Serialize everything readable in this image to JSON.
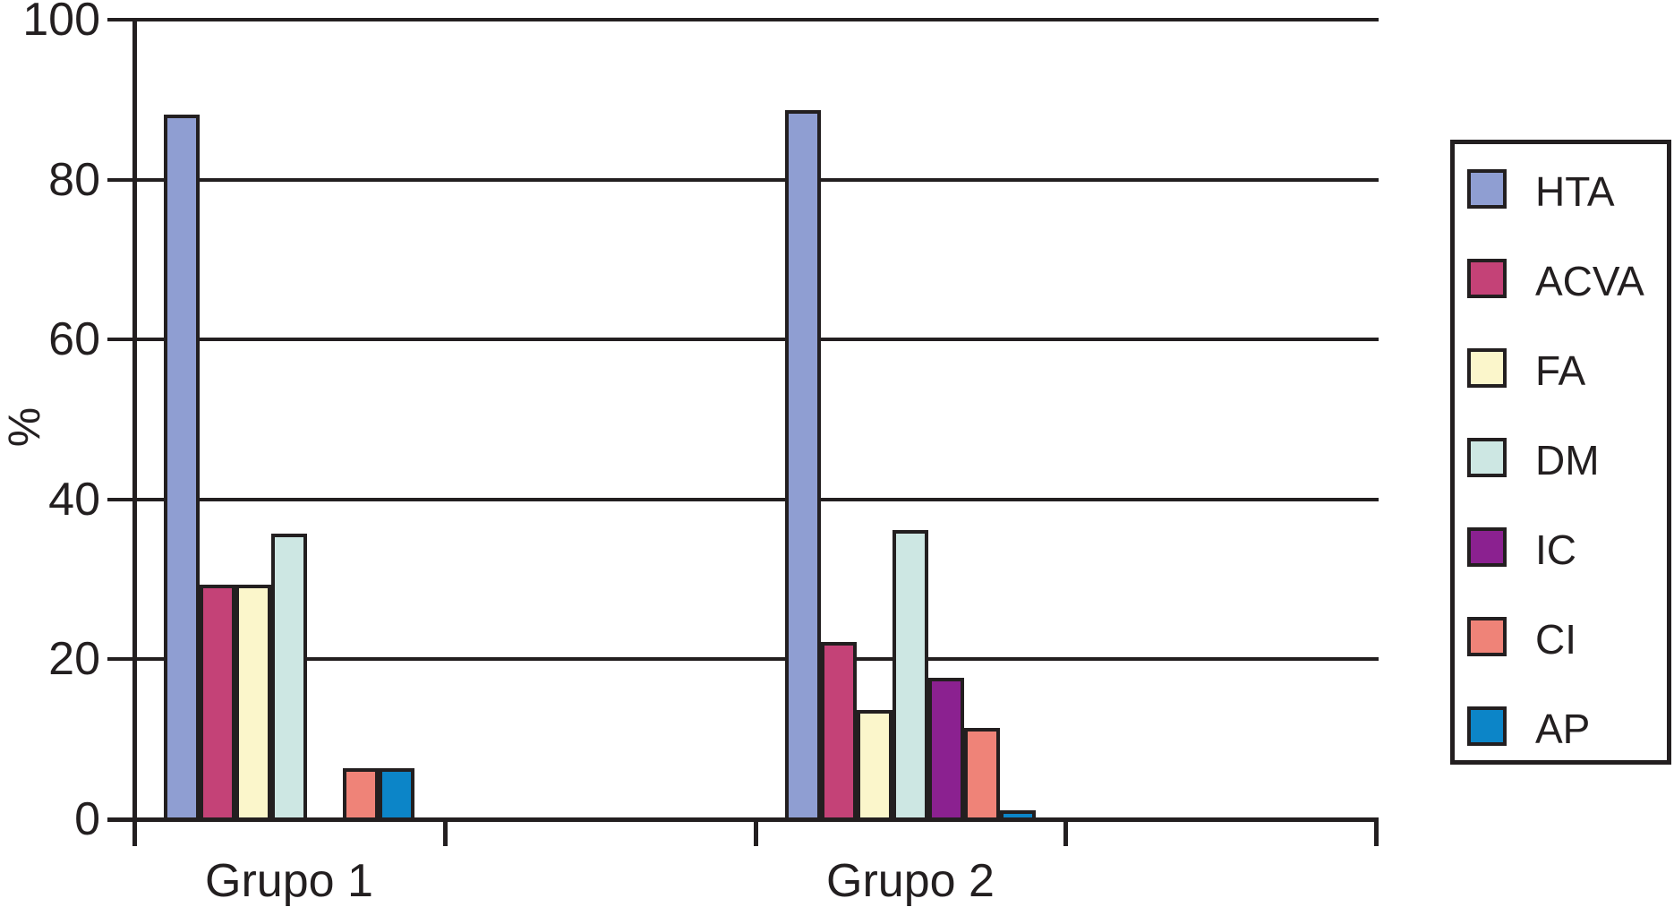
{
  "chart_data": {
    "type": "bar",
    "title": "",
    "xlabel": "",
    "ylabel": "%",
    "ylim": [
      0,
      100
    ],
    "yticks": [
      0,
      20,
      40,
      60,
      80,
      100
    ],
    "ytick_labels": [
      "0",
      "20",
      "40",
      "60",
      "80",
      "100"
    ],
    "grid": true,
    "legend_position": "right",
    "categories": [
      "Grupo 1",
      "Grupo 2"
    ],
    "series": [
      {
        "name": "HTA",
        "color": "#8f9ed2",
        "values": [
          87.5,
          88.0
        ]
      },
      {
        "name": "ACVA",
        "color": "#c44277",
        "values": [
          28.7,
          21.5
        ]
      },
      {
        "name": "FA",
        "color": "#fbf6cb",
        "values": [
          28.7,
          13.0
        ]
      },
      {
        "name": "DM",
        "color": "#cde7e3",
        "values": [
          35.0,
          35.5
        ]
      },
      {
        "name": "IC",
        "color": "#8b2190",
        "values": [
          0.0,
          17.0
        ]
      },
      {
        "name": "CI",
        "color": "#ef8378",
        "values": [
          5.7,
          10.7
        ]
      },
      {
        "name": "AP",
        "color": "#0c85c8",
        "values": [
          5.7,
          0.5
        ]
      }
    ],
    "colors": {
      "line": "#231f20",
      "background": "#ffffff"
    }
  }
}
